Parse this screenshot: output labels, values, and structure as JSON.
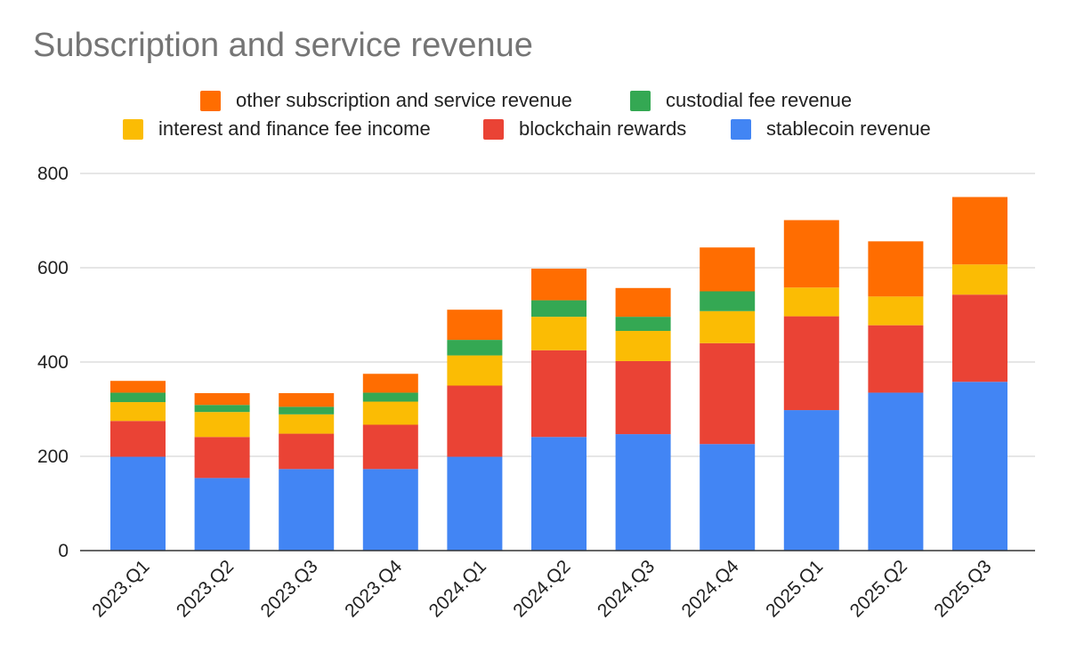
{
  "chart_data": {
    "type": "bar",
    "stacked": true,
    "title": "Subscription and service revenue",
    "xlabel": "",
    "ylabel": "",
    "ylim": [
      0,
      800
    ],
    "yticks": [
      0,
      200,
      400,
      600,
      800
    ],
    "grid": true,
    "legend_position": "top",
    "categories": [
      "2023.Q1",
      "2023.Q2",
      "2023.Q3",
      "2023.Q4",
      "2024.Q1",
      "2024.Q2",
      "2024.Q3",
      "2024.Q4",
      "2025.Q1",
      "2025.Q2",
      "2025.Q3"
    ],
    "series": [
      {
        "name": "stablecoin revenue",
        "color": "#4285f4",
        "values": [
          199,
          154,
          173,
          173,
          199,
          241,
          247,
          226,
          298,
          335,
          358
        ]
      },
      {
        "name": "blockchain rewards",
        "color": "#ea4335",
        "values": [
          76,
          87,
          75,
          94,
          151,
          184,
          155,
          214,
          199,
          143,
          185
        ]
      },
      {
        "name": "interest and finance fee income",
        "color": "#fbbc04",
        "values": [
          40,
          53,
          41,
          49,
          64,
          71,
          64,
          68,
          61,
          61,
          64
        ]
      },
      {
        "name": "custodial fee revenue",
        "color": "#34a853",
        "values": [
          20,
          15,
          16,
          19,
          33,
          35,
          30,
          42,
          0,
          0,
          0
        ]
      },
      {
        "name": "other subscription and service revenue",
        "color": "#ff6d01",
        "values": [
          25,
          25,
          29,
          40,
          64,
          67,
          61,
          93,
          143,
          117,
          143
        ]
      }
    ],
    "legend_rows": [
      [
        "other subscription and service revenue",
        "custodial fee revenue"
      ],
      [
        "interest and finance fee income",
        "blockchain rewards",
        "stablecoin revenue"
      ]
    ]
  }
}
